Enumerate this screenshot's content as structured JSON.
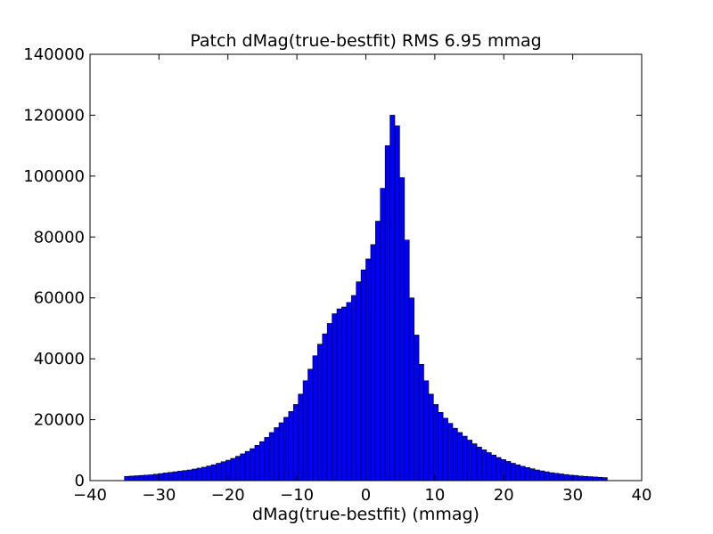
{
  "chart_data": {
    "type": "bar",
    "title": "Patch dMag(true-bestfit) RMS 6.95 mmag",
    "xlabel": "dMag(true-bestfit) (mmag)",
    "ylabel": "",
    "xlim": [
      -40,
      40
    ],
    "ylim": [
      0,
      140000
    ],
    "x_ticks": [
      -40,
      -30,
      -20,
      -10,
      0,
      10,
      20,
      30,
      40
    ],
    "x_tick_labels": [
      "−40",
      "−30",
      "−20",
      "−10",
      "0",
      "10",
      "20",
      "30",
      "40"
    ],
    "y_ticks": [
      0,
      20000,
      40000,
      60000,
      80000,
      100000,
      120000,
      140000
    ],
    "y_tick_labels": [
      "0",
      "20000",
      "40000",
      "60000",
      "80000",
      "100000",
      "120000",
      "140000"
    ],
    "grid": false,
    "bar_color": "#0000ff",
    "edge_color": "#000000",
    "bin_start": -35,
    "bin_width": 0.7,
    "values": [
      1400,
      1500,
      1600,
      1700,
      1800,
      1900,
      2100,
      2300,
      2500,
      2700,
      2900,
      3100,
      3300,
      3500,
      3800,
      4100,
      4400,
      4800,
      5200,
      5700,
      6200,
      6700,
      7300,
      8000,
      8800,
      9600,
      10500,
      11600,
      12800,
      14200,
      15800,
      17400,
      19000,
      20800,
      22700,
      25000,
      28400,
      32800,
      36600,
      41000,
      44800,
      48200,
      51600,
      54800,
      56400,
      57000,
      58500,
      60800,
      65300,
      69200,
      72800,
      77500,
      85200,
      96000,
      110000,
      120000,
      116500,
      99500,
      79000,
      60000,
      47800,
      38200,
      32800,
      28400,
      25000,
      22400,
      20500,
      18800,
      17200,
      15800,
      14600,
      13300,
      12100,
      11000,
      10100,
      9200,
      8400,
      7600,
      6900,
      6300,
      5700,
      5200,
      4700,
      4300,
      3900,
      3500,
      3200,
      2900,
      2600,
      2400,
      2200,
      2000,
      1800,
      1700,
      1500,
      1400,
      1300,
      1200,
      1100,
      1000
    ]
  }
}
